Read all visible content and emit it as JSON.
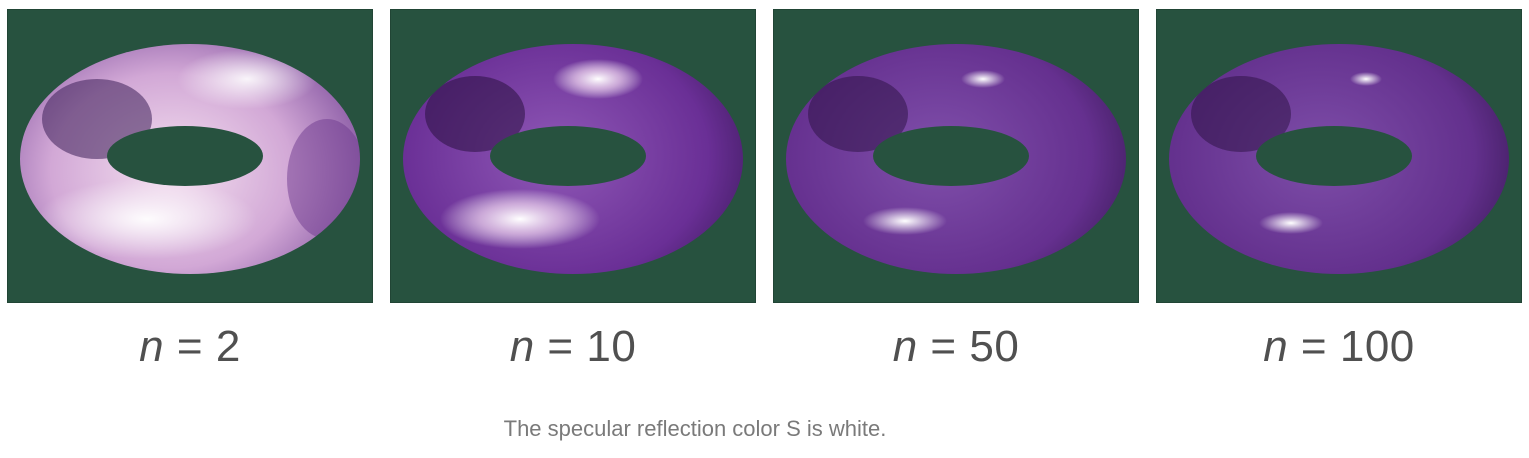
{
  "background_color": "#27523f",
  "torus_color": "#6a2f96",
  "specular_color": "#ffffff",
  "panels": [
    {
      "variable": "n",
      "operator": "=",
      "value": "2"
    },
    {
      "variable": "n",
      "operator": "=",
      "value": "10"
    },
    {
      "variable": "n",
      "operator": "=",
      "value": "50"
    },
    {
      "variable": "n",
      "operator": "=",
      "value": "100"
    }
  ],
  "caption": "The specular reflection color S is white."
}
